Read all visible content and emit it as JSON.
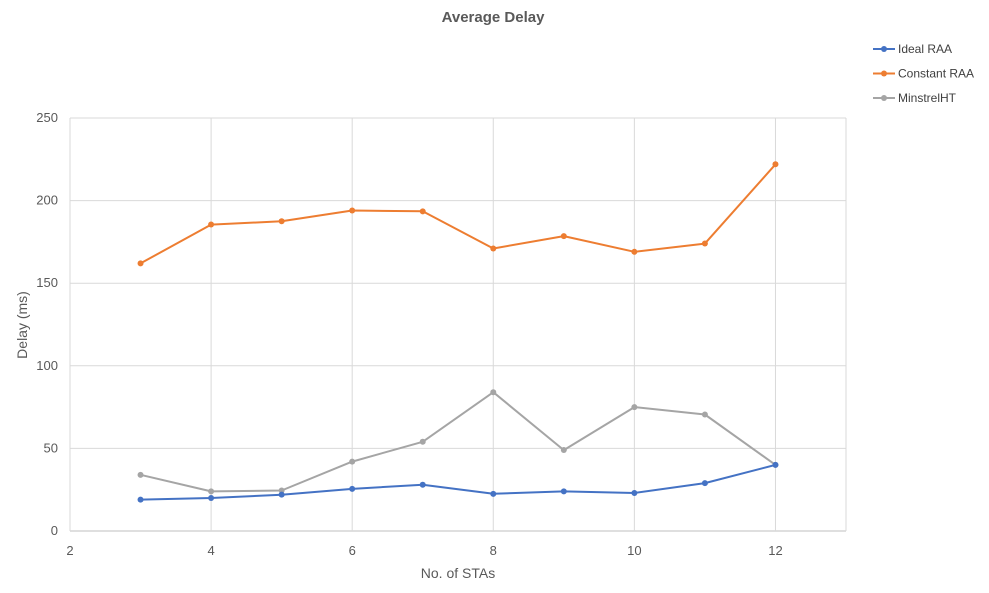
{
  "chart_data": {
    "type": "line",
    "title": "Average Delay",
    "xlabel": "No. of STAs",
    "ylabel": "Delay (ms)",
    "xlim": [
      2,
      13
    ],
    "ylim": [
      0,
      250
    ],
    "xticks": [
      2,
      4,
      6,
      8,
      10,
      12
    ],
    "yticks": [
      0,
      50,
      100,
      150,
      200,
      250
    ],
    "grid": true,
    "legend_position": "top-right",
    "x": [
      3,
      4,
      5,
      6,
      7,
      8,
      9,
      10,
      11,
      12
    ],
    "series": [
      {
        "name": "Ideal RAA",
        "color": "#4472c4",
        "values": [
          19,
          20,
          22,
          25.5,
          28,
          22.5,
          24,
          23,
          29,
          40
        ]
      },
      {
        "name": "Constant RAA",
        "color": "#ed7d31",
        "values": [
          162,
          185.5,
          187.5,
          194,
          193.5,
          171,
          178.5,
          169,
          174,
          222
        ]
      },
      {
        "name": "MinstrelHT",
        "color": "#a5a5a5",
        "values": [
          34,
          24,
          24.5,
          42,
          54,
          84,
          49,
          75,
          70.5,
          40
        ]
      }
    ]
  }
}
